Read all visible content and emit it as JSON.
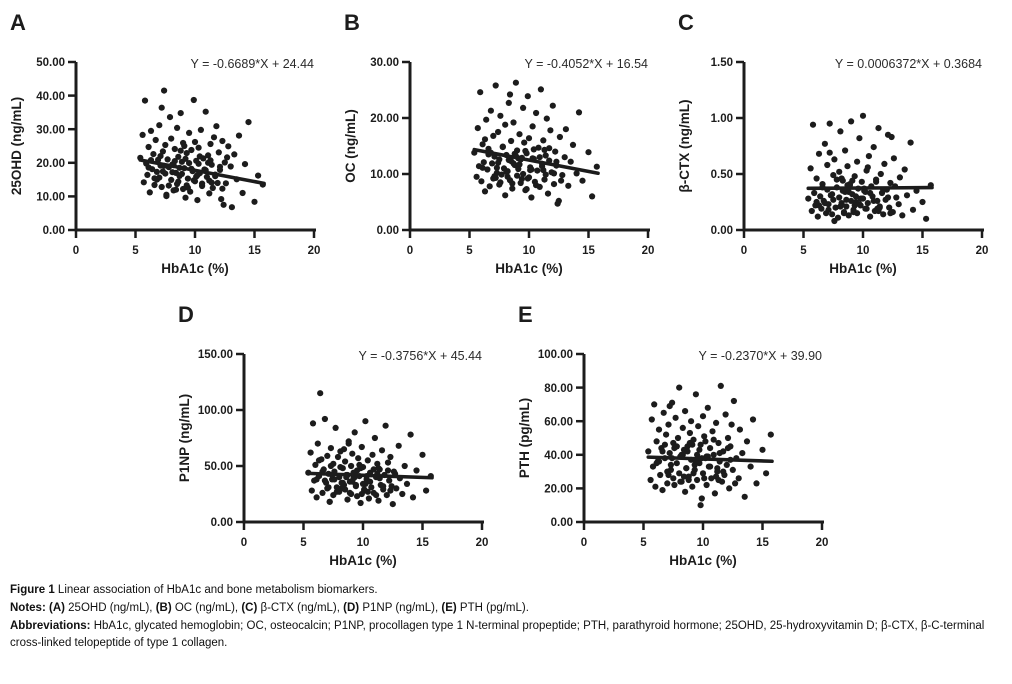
{
  "colors": {
    "ink": "#1c1c1c",
    "equation": "#2b2b2b",
    "background": "#ffffff"
  },
  "caption": {
    "figure_line": [
      {
        "b": 1,
        "t": "Figure 1"
      },
      {
        "t": " Linear association of HbA1c and bone metabolism biomarkers."
      }
    ],
    "notes_line": [
      {
        "b": 1,
        "t": "Notes:"
      },
      {
        "t": " "
      },
      {
        "b": 1,
        "t": "(A)"
      },
      {
        "t": " 25OHD (ng/mL), "
      },
      {
        "b": 1,
        "t": "(B)"
      },
      {
        "t": " OC (ng/mL), "
      },
      {
        "b": 1,
        "t": "(C)"
      },
      {
        "t": " β-CTX (ng/mL), "
      },
      {
        "b": 1,
        "t": "(D)"
      },
      {
        "t": " P1NP (ng/mL), "
      },
      {
        "b": 1,
        "t": "(E)"
      },
      {
        "t": " PTH (pg/mL)."
      }
    ],
    "abbreviations_line": [
      {
        "b": 1,
        "t": "Abbreviations:"
      },
      {
        "t": " HbA1c, glycated hemoglobin; OC, osteocalcin; P1NP, procollagen type 1 N-terminal propeptide; PTH, parathyroid hormone; 25OHD, 25-hydroxyvitamin D; β-CTX, β-C-terminal cross-linked telopeptide of type 1 collagen."
      }
    ]
  },
  "hba1c_x": [
    5.4,
    5.6,
    5.7,
    5.8,
    5.9,
    6.0,
    6.1,
    6.2,
    6.3,
    6.4,
    6.5,
    6.6,
    6.7,
    6.8,
    6.9,
    7.0,
    7.0,
    7.1,
    7.2,
    7.3,
    7.4,
    7.5,
    7.5,
    7.6,
    7.7,
    7.8,
    7.9,
    8.0,
    8.0,
    8.1,
    8.2,
    8.3,
    8.4,
    8.5,
    8.5,
    8.6,
    8.7,
    8.8,
    8.9,
    9.0,
    9.0,
    9.1,
    9.2,
    9.3,
    9.4,
    9.5,
    9.5,
    9.6,
    9.7,
    9.8,
    9.9,
    10.0,
    10.0,
    10.1,
    10.2,
    10.3,
    10.4,
    10.5,
    10.6,
    10.7,
    10.8,
    10.9,
    11.0,
    11.1,
    11.2,
    11.3,
    11.4,
    11.5,
    11.6,
    11.7,
    11.8,
    11.9,
    12.0,
    12.1,
    12.2,
    12.3,
    12.5,
    12.6,
    12.8,
    13.0,
    13.1,
    13.3,
    13.5,
    13.7,
    14.0,
    14.2,
    14.5,
    15.0,
    15.3,
    15.7,
    6.3,
    7.2,
    8.4,
    9.1,
    9.8,
    10.4,
    11.2,
    12.4,
    8.8,
    7.6,
    6.1,
    6.6,
    7.1,
    7.4,
    7.8,
    8.1,
    8.3,
    8.6,
    8.9,
    9.2,
    9.4,
    9.7,
    10.1,
    10.3,
    10.6,
    10.9,
    11.1,
    11.4,
    11.7,
    12.1,
    12.3,
    12.7,
    6.8,
    7.3,
    8.2,
    9.3,
    10.2,
    11.3,
    9.9,
    8.7
  ],
  "chart_data": [
    {
      "type": "scatter",
      "panel": "A",
      "equation": "Y = -0.6689*X + 24.44",
      "slope": -0.6689,
      "intercept": 24.44,
      "xlabel": "HbA1c (%)",
      "ylabel": "25OHD (ng/mL)",
      "xlim": [
        0,
        20
      ],
      "ylim": [
        0,
        50
      ],
      "xticks": [
        0,
        5,
        10,
        15,
        20
      ],
      "xtick_labels": [
        "0",
        "5",
        "10",
        "15",
        "20"
      ],
      "yticks": [
        0,
        10,
        20,
        30,
        40,
        50
      ],
      "ytick_labels": [
        "0.00",
        "10.00",
        "20.00",
        "30.00",
        "40.00",
        "50.00"
      ],
      "line_x": [
        5.4,
        15.8
      ],
      "x": "hba1c_x",
      "y": [
        21.5,
        28.3,
        14.2,
        38.5,
        19.8,
        16.4,
        24.7,
        11.2,
        29.5,
        18.1,
        22.6,
        13.4,
        26.8,
        17.3,
        20.9,
        15.6,
        31.2,
        19.2,
        12.8,
        23.4,
        41.5,
        16.8,
        25.3,
        10.5,
        21.0,
        18.7,
        33.6,
        14.9,
        27.2,
        19.5,
        11.8,
        24.1,
        17.0,
        30.4,
        13.7,
        21.8,
        16.1,
        34.8,
        20.3,
        12.2,
        25.9,
        18.4,
        9.6,
        22.9,
        15.3,
        28.9,
        19.9,
        11.4,
        23.8,
        17.7,
        38.7,
        14.5,
        26.2,
        20.6,
        8.9,
        24.5,
        16.9,
        29.8,
        13.1,
        21.3,
        18.0,
        35.2,
        15.8,
        22.2,
        10.9,
        25.6,
        19.4,
        12.5,
        27.6,
        16.5,
        30.9,
        14.0,
        23.1,
        17.9,
        9.2,
        26.5,
        20.1,
        13.9,
        24.9,
        18.9,
        6.8,
        22.5,
        15.1,
        28.1,
        11.0,
        19.6,
        32.1,
        8.4,
        16.2,
        13.5,
        20.8,
        36.4,
        12.0,
        25.0,
        17.5,
        21.9,
        14.7,
        7.5,
        23.6,
        10.1,
        18.6,
        15.4,
        22.0,
        19.1,
        13.2,
        17.2,
        20.5,
        14.4,
        16.7,
        21.2,
        12.6,
        18.2,
        15.9,
        19.7,
        13.8,
        17.8,
        20.0,
        14.1,
        16.0,
        18.8,
        12.3,
        21.6,
        15.0,
        17.4,
        19.3,
        13.3,
        16.3,
        20.7,
        14.8,
        18.5
      ]
    },
    {
      "type": "scatter",
      "panel": "B",
      "equation": "Y = -0.4052*X + 16.54",
      "slope": -0.4052,
      "intercept": 16.54,
      "xlabel": "HbA1c (%)",
      "ylabel": "OC (ng/mL)",
      "xlim": [
        0,
        20
      ],
      "ylim": [
        0,
        30
      ],
      "xticks": [
        0,
        5,
        10,
        15,
        20
      ],
      "xtick_labels": [
        "0",
        "5",
        "10",
        "15",
        "20"
      ],
      "yticks": [
        0,
        10,
        20,
        30
      ],
      "ytick_labels": [
        "0.00",
        "10.00",
        "20.00",
        "30.00"
      ],
      "line_x": [
        5.4,
        15.8
      ],
      "x": "hba1c_x",
      "y": [
        13.8,
        9.5,
        18.2,
        11.4,
        24.6,
        8.7,
        15.3,
        12.1,
        6.9,
        19.7,
        10.8,
        14.5,
        7.8,
        21.3,
        11.9,
        16.8,
        9.2,
        13.1,
        25.8,
        10.2,
        17.5,
        8.1,
        12.6,
        20.4,
        9.9,
        14.9,
        11.0,
        6.2,
        18.8,
        13.4,
        10.5,
        22.7,
        8.9,
        15.9,
        12.3,
        7.4,
        19.2,
        11.6,
        26.3,
        9.7,
        14.2,
        10.9,
        17.1,
        8.4,
        12.9,
        21.8,
        10.0,
        15.6,
        7.1,
        13.7,
        23.9,
        9.4,
        16.4,
        11.2,
        5.8,
        18.5,
        12.7,
        8.6,
        20.9,
        10.6,
        14.7,
        7.7,
        25.1,
        11.8,
        16.0,
        9.0,
        13.3,
        19.9,
        6.5,
        12.4,
        17.8,
        10.3,
        22.2,
        8.2,
        14.0,
        11.5,
        5.2,
        16.6,
        9.8,
        13.0,
        18.0,
        7.9,
        12.2,
        15.2,
        10.1,
        21.0,
        8.8,
        13.9,
        6.0,
        11.3,
        16.2,
        9.3,
        24.2,
        12.8,
        7.3,
        14.4,
        10.7,
        4.7,
        13.6,
        8.5,
        11.1,
        13.5,
        9.6,
        12.0,
        14.8,
        10.4,
        12.5,
        8.3,
        13.2,
        11.7,
        9.1,
        14.1,
        10.7,
        12.8,
        8.0,
        13.0,
        11.4,
        9.9,
        14.6,
        10.1,
        12.2,
        8.8,
        13.8,
        11.1,
        9.5,
        12.6,
        10.8,
        14.3,
        9.2,
        11.9
      ]
    },
    {
      "type": "scatter",
      "panel": "C",
      "equation": "Y = 0.0006372*X + 0.3684",
      "slope": 0.0006372,
      "intercept": 0.3684,
      "xlabel": "HbA1c (%)",
      "ylabel": "β-CTX (ng/mL)",
      "xlim": [
        0,
        20
      ],
      "ylim": [
        0,
        1.5
      ],
      "xticks": [
        0,
        5,
        10,
        15,
        20
      ],
      "xtick_labels": [
        "0",
        "5",
        "10",
        "15",
        "20"
      ],
      "yticks": [
        0,
        0.5,
        1.0,
        1.5
      ],
      "ytick_labels": [
        "0.00",
        "0.50",
        "1.00",
        "1.50"
      ],
      "line_x": [
        5.4,
        15.8
      ],
      "x": "hba1c_x",
      "y": [
        0.28,
        0.55,
        0.17,
        0.94,
        0.33,
        0.22,
        0.46,
        0.12,
        0.68,
        0.3,
        0.19,
        0.41,
        0.26,
        0.77,
        0.15,
        0.36,
        0.58,
        0.23,
        0.95,
        0.31,
        0.14,
        0.49,
        0.27,
        0.63,
        0.2,
        0.38,
        0.11,
        0.52,
        0.29,
        0.88,
        0.24,
        0.44,
        0.16,
        0.34,
        0.71,
        0.21,
        0.57,
        0.13,
        0.4,
        0.26,
        0.97,
        0.32,
        0.18,
        0.48,
        0.25,
        0.61,
        0.15,
        0.37,
        0.82,
        0.22,
        0.43,
        0.28,
        1.02,
        0.35,
        0.19,
        0.53,
        0.24,
        0.66,
        0.12,
        0.39,
        0.3,
        0.74,
        0.17,
        0.45,
        0.26,
        0.91,
        0.21,
        0.5,
        0.33,
        0.14,
        0.59,
        0.27,
        0.36,
        0.85,
        0.2,
        0.42,
        0.16,
        0.64,
        0.29,
        0.23,
        0.47,
        0.13,
        0.54,
        0.31,
        0.78,
        0.18,
        0.35,
        0.25,
        0.1,
        0.4,
        0.22,
        0.69,
        0.15,
        0.44,
        0.28,
        0.56,
        0.19,
        0.83,
        0.34,
        0.08,
        0.25,
        0.38,
        0.18,
        0.32,
        0.45,
        0.21,
        0.35,
        0.27,
        0.41,
        0.16,
        0.3,
        0.23,
        0.37,
        0.19,
        0.33,
        0.26,
        0.43,
        0.2,
        0.36,
        0.29,
        0.15,
        0.39,
        0.24,
        0.31,
        0.46,
        0.22,
        0.34,
        0.17,
        0.28,
        0.4
      ]
    },
    {
      "type": "scatter",
      "panel": "D",
      "equation": "Y = -0.3756*X + 45.44",
      "slope": -0.3756,
      "intercept": 45.44,
      "xlabel": "HbA1c (%)",
      "ylabel": "P1NP (ng/mL)",
      "xlim": [
        0,
        20
      ],
      "ylim": [
        0,
        150
      ],
      "xticks": [
        0,
        5,
        10,
        15,
        20
      ],
      "xtick_labels": [
        "0",
        "5",
        "10",
        "15",
        "20"
      ],
      "yticks": [
        0,
        50,
        100,
        150
      ],
      "ytick_labels": [
        "0.00",
        "50.00",
        "100.00",
        "150.00"
      ],
      "line_x": [
        5.4,
        15.8
      ],
      "x": "hba1c_x",
      "y": [
        44,
        62,
        28,
        88,
        37,
        51,
        22,
        70,
        41,
        115,
        56,
        26,
        47,
        92,
        35,
        59,
        30,
        43,
        18,
        66,
        38,
        52,
        24,
        45,
        84,
        31,
        58,
        40,
        27,
        63,
        35,
        48,
        33,
        29,
        54,
        42,
        20,
        72,
        36,
        50,
        25,
        61,
        39,
        80,
        32,
        46,
        23,
        57,
        41,
        17,
        67,
        34,
        49,
        28,
        90,
        38,
        55,
        21,
        44,
        31,
        60,
        26,
        75,
        40,
        52,
        19,
        47,
        33,
        64,
        29,
        42,
        86,
        24,
        53,
        37,
        58,
        16,
        45,
        30,
        68,
        39,
        25,
        50,
        34,
        78,
        22,
        46,
        60,
        28,
        41,
        55,
        18,
        65,
        36,
        48,
        27,
        43,
        32,
        70,
        38,
        38,
        45,
        31,
        42,
        27,
        49,
        35,
        40,
        26,
        44,
        33,
        51,
        29,
        41,
        36,
        47,
        24,
        39,
        32,
        46,
        28,
        43,
        37,
        50,
        30,
        40,
        34,
        48,
        25,
        42
      ]
    },
    {
      "type": "scatter",
      "panel": "E",
      "equation": "Y = -0.2370*X + 39.90",
      "slope": -0.237,
      "intercept": 39.9,
      "xlabel": "HbA1c (%)",
      "ylabel": "PTH (pg/mL)",
      "xlim": [
        0,
        20
      ],
      "ylim": [
        0,
        100
      ],
      "xticks": [
        0,
        5,
        10,
        15,
        20
      ],
      "xtick_labels": [
        "0",
        "5",
        "10",
        "15",
        "20"
      ],
      "yticks": [
        0,
        20,
        40,
        60,
        80,
        100
      ],
      "ytick_labels": [
        "0.00",
        "20.00",
        "40.00",
        "60.00",
        "80.00",
        "100.00"
      ],
      "line_x": [
        5.4,
        15.8
      ],
      "x": "hba1c_x",
      "y": [
        42,
        25,
        61,
        33,
        70,
        21,
        48,
        36,
        55,
        28,
        44,
        19,
        65,
        38,
        52,
        30,
        23,
        58,
        41,
        34,
        71,
        26,
        47,
        22,
        62,
        35,
        50,
        29,
        80,
        39,
        24,
        56,
        43,
        18,
        66,
        32,
        45,
        27,
        53,
        37,
        60,
        21,
        49,
        31,
        76,
        40,
        25,
        57,
        35,
        46,
        14,
        63,
        29,
        51,
        38,
        22,
        68,
        33,
        44,
        26,
        54,
        40,
        17,
        59,
        30,
        47,
        36,
        81,
        24,
        42,
        28,
        64,
        34,
        50,
        20,
        45,
        31,
        72,
        38,
        26,
        55,
        41,
        15,
        48,
        33,
        61,
        23,
        43,
        29,
        52,
        36,
        69,
        27,
        46,
        10,
        39,
        32,
        58,
        25,
        44,
        35,
        42,
        28,
        38,
        45,
        24,
        40,
        32,
        47,
        29,
        36,
        43,
        26,
        39,
        33,
        49,
        27,
        41,
        30,
        44,
        37,
        23,
        46,
        31,
        40,
        34,
        48,
        25,
        38,
        42
      ]
    }
  ]
}
